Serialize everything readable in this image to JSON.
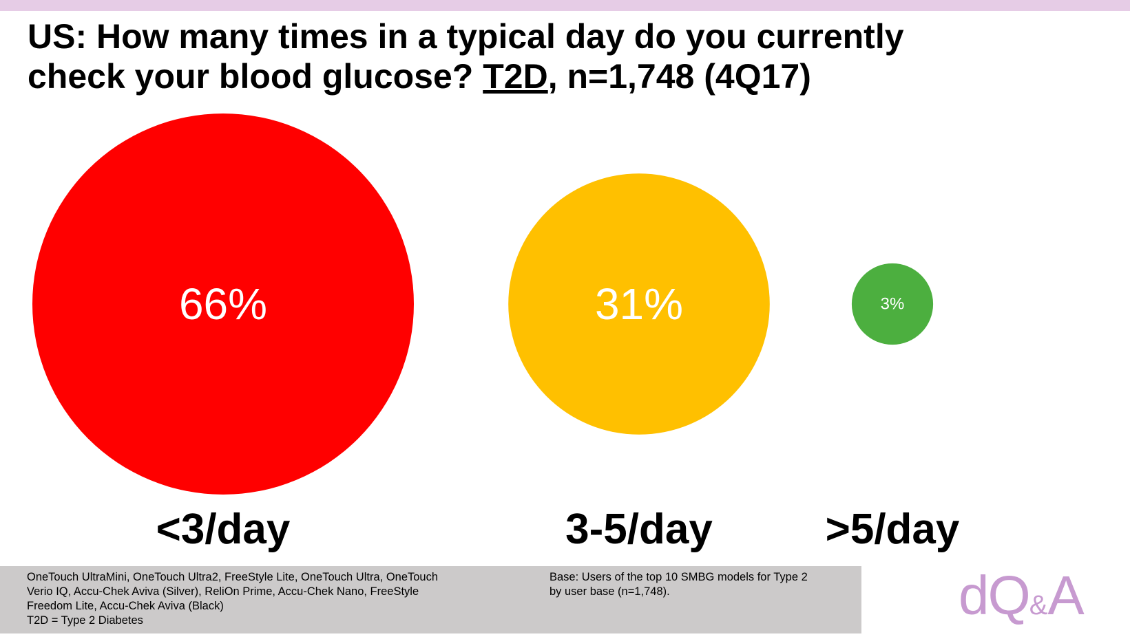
{
  "title": {
    "line1": "US: How many times in a typical day do you currently",
    "line2_pre": "check your blood glucose? ",
    "line2_underlined": "T2D",
    "line2_post": ", n=1,748 (4Q17)"
  },
  "chart_data": {
    "type": "bubble",
    "title": "US: How many times in a typical day do you currently check your blood glucose? T2D, n=1,748 (4Q17)",
    "unit": "%",
    "categories": [
      "<3/day",
      "3-5/day",
      ">5/day"
    ],
    "values": [
      66,
      31,
      3
    ],
    "value_labels": [
      "66%",
      "31%",
      "3%"
    ],
    "colors": [
      "#ff0000",
      "#ffc000",
      "#4caf3f"
    ]
  },
  "footnotes": {
    "models": [
      "OneTouch UltraMini, OneTouch Ultra2, FreeStyle Lite, OneTouch Ultra, OneTouch",
      "Verio IQ, Accu-Chek Aviva (Silver), ReliOn Prime, Accu-Chek Nano, FreeStyle",
      "Freedom Lite, Accu-Chek Aviva (Black)",
      "T2D = Type 2 Diabetes"
    ],
    "base": [
      "Base: Users of the top 10 SMBG models for Type 2",
      "by user base (n=1,748)."
    ]
  },
  "logo": {
    "main": "dQ",
    "amp": "&",
    "end": "A"
  },
  "colors": {
    "top_bar": "#e6cce6",
    "footer": "#cccaca",
    "logo": "#c79ad0"
  }
}
